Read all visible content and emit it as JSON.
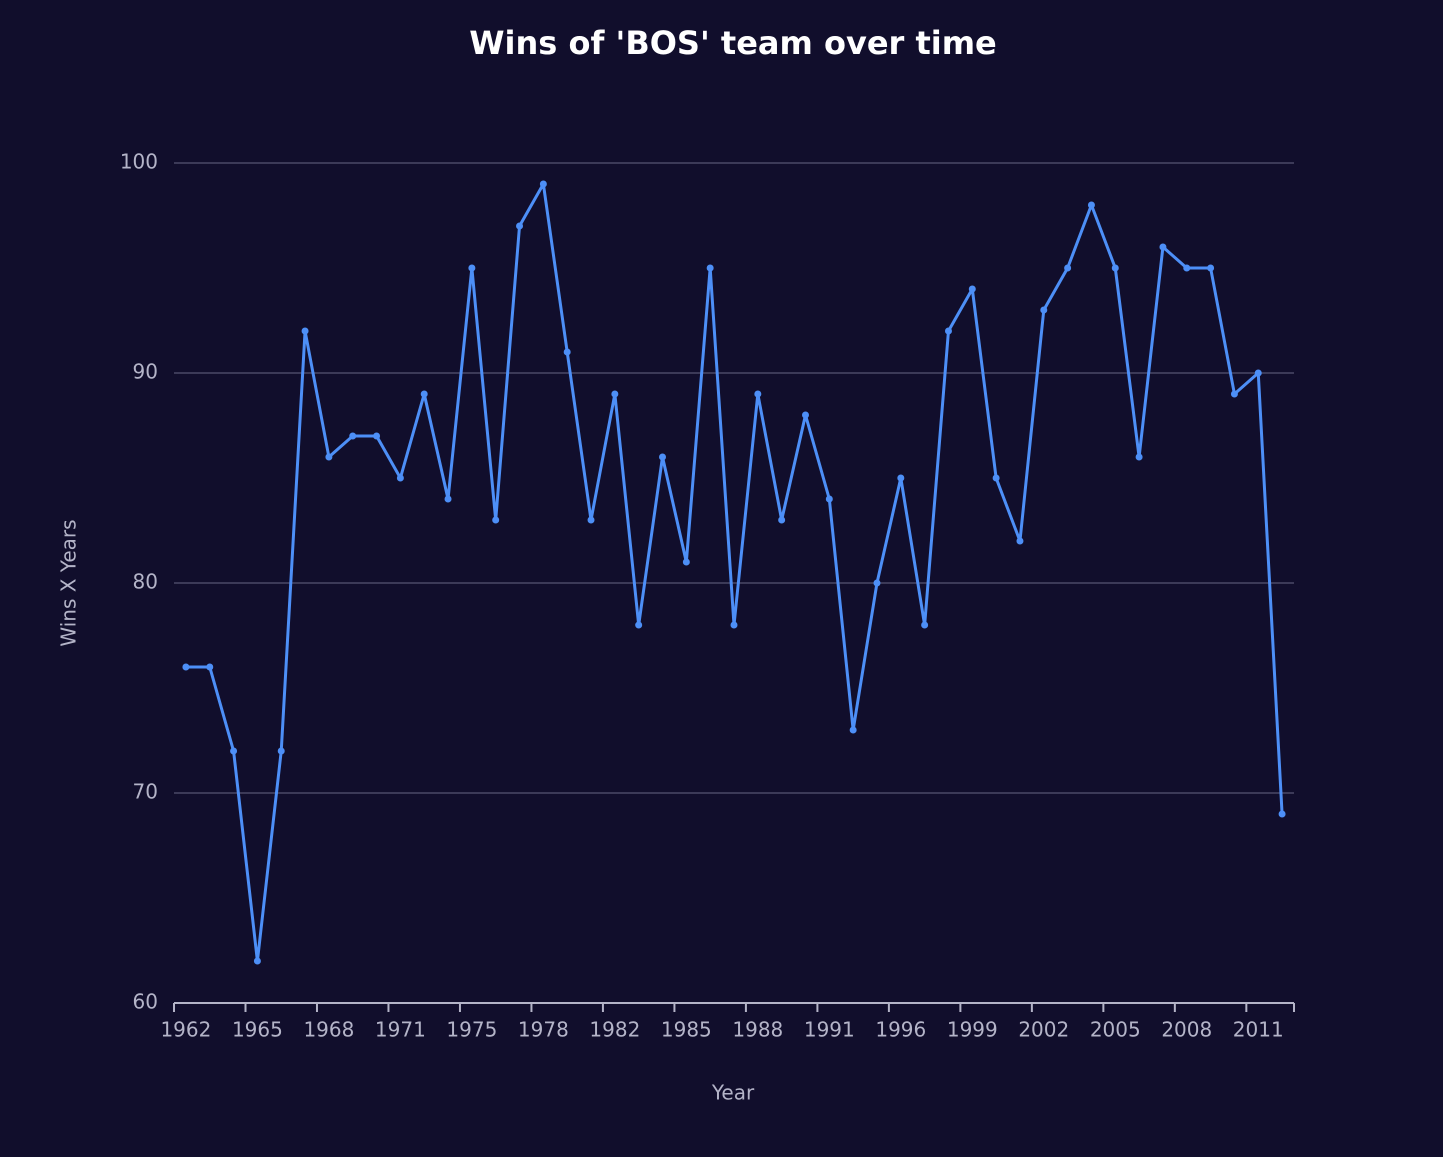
{
  "chart_data": {
    "type": "line",
    "title": "Wins of 'BOS' team over time",
    "x_label": "Year",
    "y_label": "Wins X Years",
    "categories": [
      "1962",
      null,
      null,
      "1965",
      null,
      null,
      "1968",
      null,
      null,
      "1971",
      null,
      null,
      "1975",
      null,
      null,
      "1978",
      null,
      null,
      "1982",
      null,
      null,
      "1985",
      null,
      null,
      "1988",
      null,
      null,
      "1991",
      null,
      null,
      "1996",
      null,
      null,
      "1999",
      null,
      null,
      "2002",
      null,
      null,
      "2005",
      null,
      null,
      "2008",
      null,
      null,
      "2011",
      null
    ],
    "series": [
      {
        "name": "BOS",
        "color": "#4d8ff7",
        "values": [
          76,
          76,
          72,
          62,
          72,
          92,
          86,
          87,
          87,
          85,
          89,
          84,
          95,
          83,
          97,
          99,
          91,
          83,
          89,
          78,
          86,
          81,
          95,
          78,
          89,
          83,
          88,
          84,
          73,
          80,
          85,
          78,
          92,
          94,
          85,
          82,
          93,
          95,
          98,
          95,
          86,
          96,
          95,
          95,
          89,
          90,
          69
        ]
      }
    ],
    "ylim": [
      60,
      100
    ],
    "yticks": [
      60,
      70,
      80,
      90,
      100
    ],
    "grid": true
  }
}
